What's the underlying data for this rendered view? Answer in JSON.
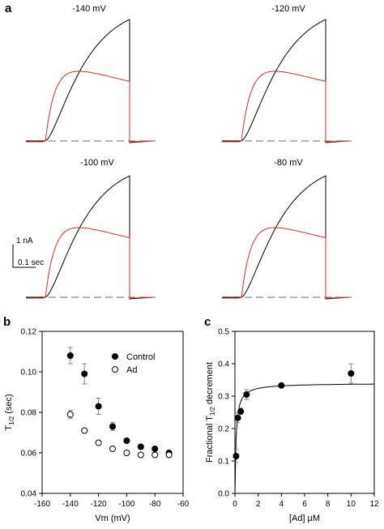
{
  "panels": {
    "a": "a",
    "b": "b",
    "c": "c"
  },
  "colors": {
    "control_trace": "#000000",
    "ad_trace": "#e0301e",
    "baseline": "#888888"
  },
  "scale_bar": {
    "current_label": "1 nA",
    "time_label": "0.1 sec"
  },
  "traces_panel": {
    "labels": [
      "-140 mV",
      "-120 mV",
      "-100 mV",
      "-80 mV"
    ]
  },
  "chart_data": [
    {
      "panel": "a",
      "type": "line",
      "title": "",
      "note": "Current traces shown as shape only; no numeric axes printed.",
      "panels": [
        {
          "label": "-140 mV",
          "series": [
            {
              "color": "#000000"
            },
            {
              "color": "#e0301e"
            }
          ]
        },
        {
          "label": "-120 mV",
          "series": [
            {
              "color": "#000000"
            },
            {
              "color": "#e0301e"
            }
          ]
        },
        {
          "label": "-100 mV",
          "series": [
            {
              "color": "#000000"
            },
            {
              "color": "#e0301e"
            }
          ]
        },
        {
          "label": "-80 mV",
          "series": [
            {
              "color": "#000000"
            },
            {
              "color": "#e0301e"
            }
          ]
        }
      ]
    },
    {
      "panel": "b",
      "type": "scatter",
      "xlabel": "Vm (mV)",
      "ylabel": "T1/2 (sec)",
      "ylabel_main": "T",
      "ylabel_sub": "1/2",
      "ylabel_rest": " (sec)",
      "xlim": [
        -160,
        -60
      ],
      "ylim": [
        0.04,
        0.12
      ],
      "xticks": [
        -160,
        -140,
        -120,
        -100,
        -80,
        -60
      ],
      "yticks": [
        0.04,
        0.06,
        0.08,
        0.1,
        0.12
      ],
      "xtick_labels": [
        "-160",
        "-140",
        "-120",
        "-100",
        "-80",
        "-60"
      ],
      "ytick_labels": [
        "0.04",
        "0.06",
        "0.08",
        "0.10",
        "0.12"
      ],
      "legend_position": "top-right",
      "series": [
        {
          "name": "Control",
          "marker": "filled-circle",
          "x": [
            -140,
            -130,
            -120,
            -110,
            -100,
            -90,
            -80,
            -70
          ],
          "y": [
            0.108,
            0.099,
            0.083,
            0.073,
            0.066,
            0.063,
            0.062,
            0.06
          ],
          "err": [
            0.004,
            0.005,
            0.004,
            0.002,
            0.001,
            0.001,
            0.001,
            0.001
          ]
        },
        {
          "name": "Ad",
          "marker": "open-circle",
          "x": [
            -140,
            -130,
            -120,
            -110,
            -100,
            -90,
            -80,
            -70
          ],
          "y": [
            0.079,
            0.071,
            0.065,
            0.062,
            0.06,
            0.059,
            0.059,
            0.059
          ],
          "err": [
            0.002,
            0.001,
            0.001,
            0.001,
            0.001,
            0.001,
            0.001,
            0.001
          ]
        }
      ]
    },
    {
      "panel": "c",
      "type": "scatter",
      "xlabel": "[Ad] µM",
      "ylabel": "Fractional T1/2 decrement",
      "ylabel_main": "Fractional T",
      "ylabel_sub": "1/2",
      "ylabel_rest": " decrement",
      "xlim": [
        0,
        12
      ],
      "ylim": [
        0,
        0.5
      ],
      "xticks": [
        0,
        2,
        4,
        6,
        8,
        10,
        12
      ],
      "yticks": [
        0,
        0.1,
        0.2,
        0.3,
        0.4,
        0.5
      ],
      "xtick_labels": [
        "0",
        "2",
        "4",
        "6",
        "8",
        "10",
        "12"
      ],
      "ytick_labels": [
        "0.0",
        "0.1",
        "0.2",
        "0.3",
        "0.4",
        "0.5"
      ],
      "series": [
        {
          "marker": "filled-circle",
          "x": [
            0.1,
            0.25,
            0.5,
            1,
            4,
            10
          ],
          "y": [
            0.115,
            0.233,
            0.253,
            0.305,
            0.333,
            0.37
          ],
          "err": [
            0.02,
            0.015,
            0.01,
            0.015,
            0.005,
            0.03
          ]
        }
      ],
      "fit": {
        "type": "hyperbolic"
      }
    }
  ]
}
